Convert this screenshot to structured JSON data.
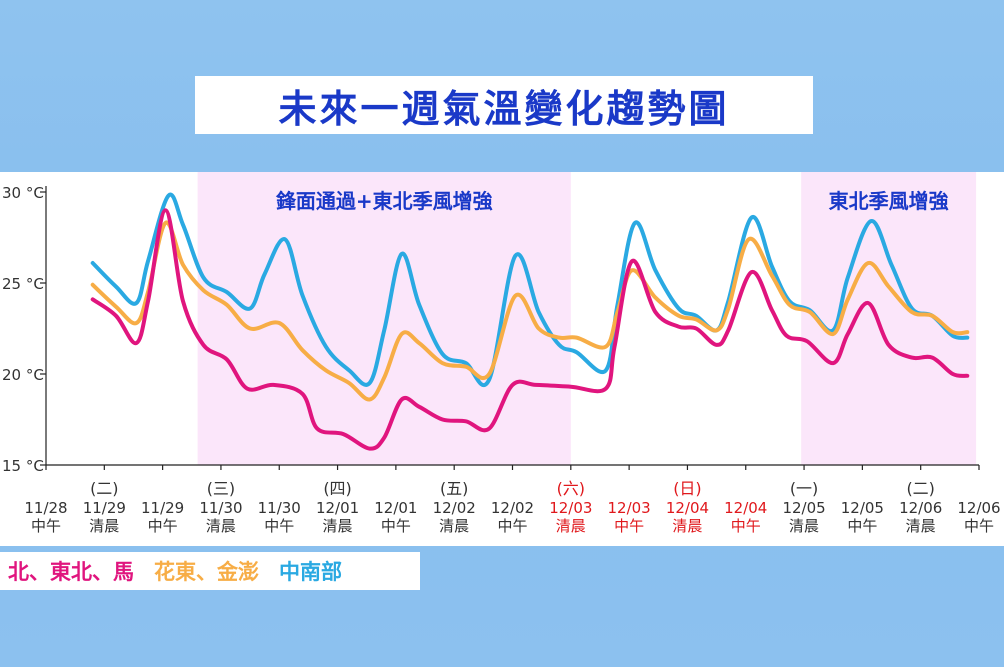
{
  "title": "未來一週氣溫變化趨勢圖",
  "legend": {
    "north": "北、東北、馬",
    "east": "花東、金澎",
    "central_south": "中南部"
  },
  "chart_data": {
    "type": "line",
    "title": "未來一週氣溫變化趨勢圖",
    "ylim": [
      15,
      30
    ],
    "yticks": [
      "15 °C",
      "20 °C",
      "25 °C",
      "30 °C"
    ],
    "xlim": [
      0,
      16
    ],
    "tick_labels": [
      {
        "x": 0,
        "day": "",
        "date": "11/28",
        "time": "中午",
        "red": false
      },
      {
        "x": 1,
        "day": "(二)",
        "date": "11/29",
        "time": "清晨",
        "red": false
      },
      {
        "x": 2,
        "day": "",
        "date": "11/29",
        "time": "中午",
        "red": false
      },
      {
        "x": 3,
        "day": "(三)",
        "date": "11/30",
        "time": "清晨",
        "red": false
      },
      {
        "x": 4,
        "day": "",
        "date": "11/30",
        "time": "中午",
        "red": false
      },
      {
        "x": 5,
        "day": "(四)",
        "date": "12/01",
        "time": "清晨",
        "red": false
      },
      {
        "x": 6,
        "day": "",
        "date": "12/01",
        "time": "中午",
        "red": false
      },
      {
        "x": 7,
        "day": "(五)",
        "date": "12/02",
        "time": "清晨",
        "red": false
      },
      {
        "x": 8,
        "day": "",
        "date": "12/02",
        "time": "中午",
        "red": false
      },
      {
        "x": 9,
        "day": "(六)",
        "date": "12/03",
        "time": "清晨",
        "red": true
      },
      {
        "x": 10,
        "day": "",
        "date": "12/03",
        "time": "中午",
        "red": true
      },
      {
        "x": 11,
        "day": "(日)",
        "date": "12/04",
        "time": "清晨",
        "red": true
      },
      {
        "x": 12,
        "day": "",
        "date": "12/04",
        "time": "中午",
        "red": true
      },
      {
        "x": 13,
        "day": "(一)",
        "date": "12/05",
        "time": "清晨",
        "red": false
      },
      {
        "x": 14,
        "day": "",
        "date": "12/05",
        "time": "中午",
        "red": false
      },
      {
        "x": 15,
        "day": "(二)",
        "date": "12/06",
        "time": "清晨",
        "red": false
      },
      {
        "x": 16,
        "day": "",
        "date": "12/06",
        "time": "中午",
        "red": false
      }
    ],
    "shaded_regions": [
      {
        "from": 2.6,
        "to": 9,
        "label": "鋒面通過+東北季風增強"
      },
      {
        "from": 12.95,
        "to": 15.95,
        "label": "東北季風增強"
      }
    ],
    "series": [
      {
        "name": "北、東北、馬",
        "color": "#e0157e",
        "points": [
          [
            0.8,
            24.1
          ],
          [
            1.2,
            23.2
          ],
          [
            1.55,
            21.7
          ],
          [
            1.75,
            24.0
          ],
          [
            2.05,
            29.0
          ],
          [
            2.35,
            24.0
          ],
          [
            2.7,
            21.6
          ],
          [
            3.1,
            20.8
          ],
          [
            3.45,
            19.2
          ],
          [
            3.9,
            19.4
          ],
          [
            4.4,
            18.9
          ],
          [
            4.65,
            17.0
          ],
          [
            5.1,
            16.7
          ],
          [
            5.55,
            15.9
          ],
          [
            5.8,
            16.5
          ],
          [
            6.1,
            18.6
          ],
          [
            6.4,
            18.2
          ],
          [
            6.8,
            17.5
          ],
          [
            7.2,
            17.4
          ],
          [
            7.6,
            17.0
          ],
          [
            8.0,
            19.4
          ],
          [
            8.4,
            19.4
          ],
          [
            9.0,
            19.3
          ],
          [
            9.6,
            19.2
          ],
          [
            9.75,
            21.5
          ],
          [
            10.05,
            26.2
          ],
          [
            10.45,
            23.4
          ],
          [
            10.85,
            22.6
          ],
          [
            11.15,
            22.5
          ],
          [
            11.5,
            21.6
          ],
          [
            11.7,
            22.4
          ],
          [
            12.1,
            25.6
          ],
          [
            12.45,
            23.5
          ],
          [
            12.7,
            22.1
          ],
          [
            13.05,
            21.8
          ],
          [
            13.5,
            20.6
          ],
          [
            13.75,
            22.2
          ],
          [
            14.1,
            23.9
          ],
          [
            14.45,
            21.6
          ],
          [
            14.85,
            20.9
          ],
          [
            15.2,
            20.9
          ],
          [
            15.55,
            20.0
          ],
          [
            15.8,
            19.9
          ]
        ]
      },
      {
        "name": "花東、金澎",
        "color": "#f7ad46",
        "points": [
          [
            0.8,
            24.9
          ],
          [
            1.2,
            23.7
          ],
          [
            1.55,
            22.8
          ],
          [
            1.75,
            24.5
          ],
          [
            2.05,
            28.3
          ],
          [
            2.35,
            26.0
          ],
          [
            2.7,
            24.6
          ],
          [
            3.1,
            23.8
          ],
          [
            3.5,
            22.5
          ],
          [
            4.0,
            22.8
          ],
          [
            4.4,
            21.3
          ],
          [
            4.8,
            20.2
          ],
          [
            5.2,
            19.5
          ],
          [
            5.55,
            18.6
          ],
          [
            5.8,
            19.8
          ],
          [
            6.1,
            22.2
          ],
          [
            6.4,
            21.7
          ],
          [
            6.8,
            20.6
          ],
          [
            7.2,
            20.4
          ],
          [
            7.6,
            20.0
          ],
          [
            8.05,
            24.3
          ],
          [
            8.45,
            22.5
          ],
          [
            8.8,
            22.0
          ],
          [
            9.1,
            22.0
          ],
          [
            9.6,
            21.5
          ],
          [
            9.8,
            23.4
          ],
          [
            10.05,
            25.7
          ],
          [
            10.45,
            24.2
          ],
          [
            10.85,
            23.2
          ],
          [
            11.15,
            23.0
          ],
          [
            11.5,
            22.4
          ],
          [
            11.7,
            23.6
          ],
          [
            12.05,
            27.4
          ],
          [
            12.45,
            25.4
          ],
          [
            12.75,
            23.8
          ],
          [
            13.1,
            23.4
          ],
          [
            13.5,
            22.2
          ],
          [
            13.75,
            24.1
          ],
          [
            14.1,
            26.1
          ],
          [
            14.45,
            24.8
          ],
          [
            14.85,
            23.4
          ],
          [
            15.2,
            23.2
          ],
          [
            15.55,
            22.3
          ],
          [
            15.8,
            22.3
          ]
        ]
      },
      {
        "name": "中南部",
        "color": "#2aa9e2",
        "points": [
          [
            0.8,
            26.1
          ],
          [
            1.2,
            24.8
          ],
          [
            1.55,
            23.9
          ],
          [
            1.75,
            26.2
          ],
          [
            2.1,
            29.8
          ],
          [
            2.35,
            28.2
          ],
          [
            2.7,
            25.3
          ],
          [
            3.1,
            24.5
          ],
          [
            3.5,
            23.6
          ],
          [
            3.75,
            25.5
          ],
          [
            4.1,
            27.4
          ],
          [
            4.4,
            24.3
          ],
          [
            4.8,
            21.5
          ],
          [
            5.2,
            20.2
          ],
          [
            5.55,
            19.5
          ],
          [
            5.8,
            22.4
          ],
          [
            6.1,
            26.6
          ],
          [
            6.4,
            23.8
          ],
          [
            6.8,
            21.1
          ],
          [
            7.2,
            20.6
          ],
          [
            7.6,
            19.7
          ],
          [
            8.05,
            26.5
          ],
          [
            8.45,
            23.4
          ],
          [
            8.8,
            21.6
          ],
          [
            9.1,
            21.2
          ],
          [
            9.6,
            20.2
          ],
          [
            9.8,
            23.8
          ],
          [
            10.1,
            28.3
          ],
          [
            10.45,
            25.7
          ],
          [
            10.85,
            23.6
          ],
          [
            11.15,
            23.2
          ],
          [
            11.5,
            22.4
          ],
          [
            11.7,
            24.0
          ],
          [
            12.1,
            28.6
          ],
          [
            12.45,
            25.9
          ],
          [
            12.75,
            24.0
          ],
          [
            13.1,
            23.5
          ],
          [
            13.5,
            22.4
          ],
          [
            13.75,
            25.3
          ],
          [
            14.15,
            28.4
          ],
          [
            14.5,
            26.0
          ],
          [
            14.85,
            23.6
          ],
          [
            15.2,
            23.2
          ],
          [
            15.55,
            22.1
          ],
          [
            15.8,
            22.0
          ]
        ]
      }
    ]
  }
}
